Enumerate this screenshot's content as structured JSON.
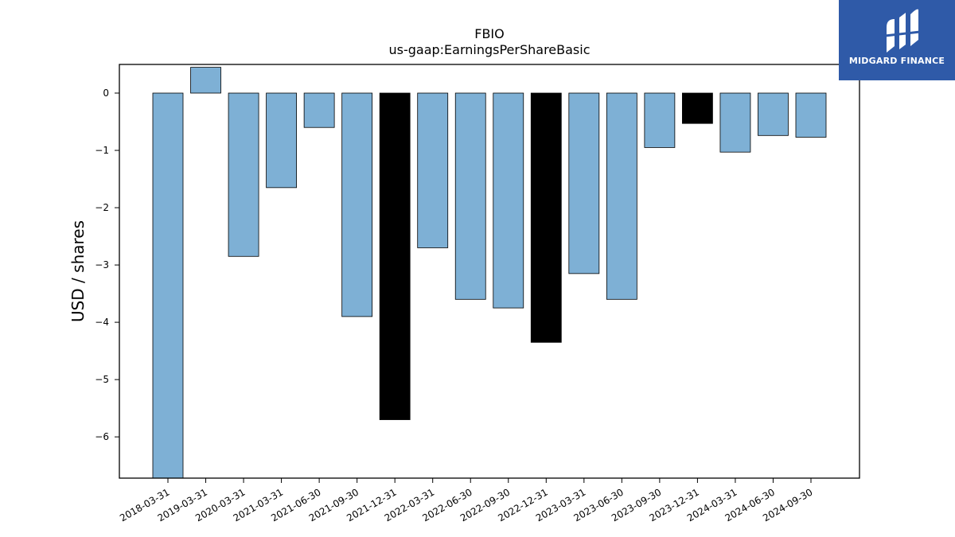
{
  "chart_data": {
    "type": "bar",
    "title": "FBIO",
    "subtitle": "us-gaap:EarningsPerShareBasic",
    "xlabel": "",
    "ylabel": "USD / shares",
    "ylim": [
      -6.72,
      0.5
    ],
    "yticks": [
      0,
      -1,
      -2,
      -3,
      -4,
      -5,
      -6
    ],
    "ytick_labels": [
      "0",
      "−1",
      "−2",
      "−3",
      "−4",
      "−5",
      "−6"
    ],
    "grid": false,
    "categories": [
      "2018-03-31",
      "2019-03-31",
      "2020-03-31",
      "2021-03-31",
      "2021-06-30",
      "2021-09-30",
      "2021-12-31",
      "2022-03-31",
      "2022-06-30",
      "2022-09-30",
      "2022-12-31",
      "2023-03-31",
      "2023-06-30",
      "2023-09-30",
      "2023-12-31",
      "2024-03-31",
      "2024-06-30",
      "2024-09-30"
    ],
    "values": [
      -6.72,
      0.45,
      -2.85,
      -1.65,
      -0.6,
      -3.9,
      -5.7,
      -2.7,
      -3.6,
      -3.75,
      -4.35,
      -3.15,
      -3.6,
      -0.95,
      -0.53,
      -1.03,
      -0.74,
      -0.77
    ],
    "highlighted": [
      false,
      false,
      false,
      false,
      false,
      false,
      true,
      false,
      false,
      false,
      true,
      false,
      false,
      false,
      true,
      false,
      false,
      false
    ],
    "colors": {
      "bar": "#7eb0d5",
      "highlight": "#000000",
      "edge": "#000000"
    }
  },
  "logo": {
    "text": "MIDGARD FINANCE",
    "background": "#2f5aa8"
  }
}
